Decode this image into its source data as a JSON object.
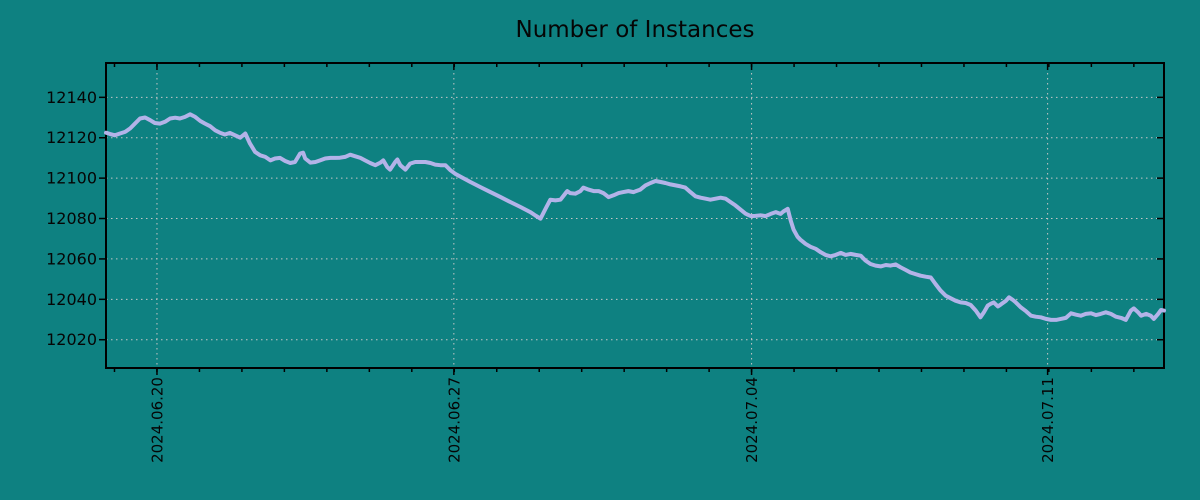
{
  "colors": {
    "background": "#0e8181",
    "line": "#b3b3e8",
    "grid": "#c6c6c6",
    "axis": "#000000",
    "text": "#050505"
  },
  "chart_data": {
    "type": "line",
    "title": "Number of Instances",
    "grid": "dotted",
    "legend": null,
    "x_axis": {
      "tick_labels": [
        "2024.06.20",
        "2024.06.27",
        "2024.07.04",
        "2024.07.11"
      ],
      "tick_days": [
        1.2,
        8.19,
        15.2,
        22.17
      ],
      "minor_tick_interval_days": 1,
      "xlim_days": [
        0,
        24.91
      ],
      "note": "t is in days from the left edge of the plot; the 2024.06.20 tick sits at t=1.20"
    },
    "y_axis": {
      "ticks": [
        12020,
        12040,
        12060,
        12080,
        12100,
        12120,
        12140
      ],
      "ylim": [
        12006,
        12157
      ]
    },
    "series": [
      {
        "name": "instances",
        "points": [
          [
            0.0,
            12122.5
          ],
          [
            0.09,
            12121.9
          ],
          [
            0.21,
            12121.2
          ],
          [
            0.33,
            12122.1
          ],
          [
            0.45,
            12122.9
          ],
          [
            0.57,
            12124.6
          ],
          [
            0.68,
            12127.0
          ],
          [
            0.8,
            12129.5
          ],
          [
            0.92,
            12130.0
          ],
          [
            1.04,
            12128.7
          ],
          [
            1.15,
            12127.3
          ],
          [
            1.27,
            12127.0
          ],
          [
            1.39,
            12127.9
          ],
          [
            1.51,
            12129.5
          ],
          [
            1.63,
            12129.9
          ],
          [
            1.74,
            12129.5
          ],
          [
            1.86,
            12130.3
          ],
          [
            1.98,
            12131.6
          ],
          [
            2.1,
            12130.3
          ],
          [
            2.22,
            12128.3
          ],
          [
            2.33,
            12127.0
          ],
          [
            2.45,
            12125.7
          ],
          [
            2.57,
            12123.7
          ],
          [
            2.69,
            12122.4
          ],
          [
            2.8,
            12121.6
          ],
          [
            2.92,
            12122.4
          ],
          [
            3.04,
            12121.2
          ],
          [
            3.16,
            12120.0
          ],
          [
            3.28,
            12122.1
          ],
          [
            3.39,
            12117.1
          ],
          [
            3.51,
            12113.0
          ],
          [
            3.63,
            12111.3
          ],
          [
            3.75,
            12110.5
          ],
          [
            3.87,
            12108.8
          ],
          [
            3.98,
            12109.7
          ],
          [
            4.1,
            12110.0
          ],
          [
            4.22,
            12108.5
          ],
          [
            4.34,
            12107.5
          ],
          [
            4.45,
            12108.0
          ],
          [
            4.57,
            12112.2
          ],
          [
            4.64,
            12112.6
          ],
          [
            4.69,
            12109.7
          ],
          [
            4.81,
            12107.7
          ],
          [
            4.93,
            12108.0
          ],
          [
            5.04,
            12108.8
          ],
          [
            5.16,
            12109.7
          ],
          [
            5.28,
            12110.0
          ],
          [
            5.4,
            12110.0
          ],
          [
            5.51,
            12110.1
          ],
          [
            5.63,
            12110.5
          ],
          [
            5.75,
            12111.6
          ],
          [
            5.87,
            12110.8
          ],
          [
            5.99,
            12110.0
          ],
          [
            6.1,
            12108.8
          ],
          [
            6.22,
            12107.5
          ],
          [
            6.34,
            12106.4
          ],
          [
            6.46,
            12107.7
          ],
          [
            6.53,
            12108.8
          ],
          [
            6.62,
            12105.5
          ],
          [
            6.69,
            12104.2
          ],
          [
            6.81,
            12108.0
          ],
          [
            6.86,
            12109.2
          ],
          [
            6.93,
            12106.4
          ],
          [
            7.05,
            12104.2
          ],
          [
            7.16,
            12107.2
          ],
          [
            7.28,
            12108.0
          ],
          [
            7.4,
            12108.0
          ],
          [
            7.52,
            12108.0
          ],
          [
            7.64,
            12107.5
          ],
          [
            7.75,
            12106.7
          ],
          [
            7.87,
            12106.4
          ],
          [
            7.99,
            12106.4
          ],
          [
            8.11,
            12103.9
          ],
          [
            8.22,
            12102.2
          ],
          [
            8.34,
            12100.8
          ],
          [
            8.58,
            12098.1
          ],
          [
            8.81,
            12095.6
          ],
          [
            9.05,
            12093.1
          ],
          [
            9.29,
            12090.6
          ],
          [
            9.52,
            12088.2
          ],
          [
            9.76,
            12085.7
          ],
          [
            9.99,
            12083.2
          ],
          [
            10.11,
            12081.5
          ],
          [
            10.23,
            12079.9
          ],
          [
            10.35,
            12084.9
          ],
          [
            10.46,
            12089.3
          ],
          [
            10.58,
            12089.0
          ],
          [
            10.7,
            12089.3
          ],
          [
            10.82,
            12092.6
          ],
          [
            10.86,
            12093.6
          ],
          [
            10.93,
            12092.6
          ],
          [
            11.05,
            12092.3
          ],
          [
            11.17,
            12093.6
          ],
          [
            11.24,
            12095.3
          ],
          [
            11.36,
            12094.3
          ],
          [
            11.48,
            12093.6
          ],
          [
            11.6,
            12093.6
          ],
          [
            11.71,
            12092.6
          ],
          [
            11.83,
            12090.6
          ],
          [
            11.95,
            12091.5
          ],
          [
            12.07,
            12092.6
          ],
          [
            12.18,
            12093.1
          ],
          [
            12.3,
            12093.6
          ],
          [
            12.42,
            12093.1
          ],
          [
            12.58,
            12094.3
          ],
          [
            12.7,
            12096.4
          ],
          [
            12.82,
            12097.6
          ],
          [
            12.94,
            12098.6
          ],
          [
            13.06,
            12098.1
          ],
          [
            13.17,
            12097.6
          ],
          [
            13.29,
            12096.9
          ],
          [
            13.41,
            12096.4
          ],
          [
            13.53,
            12095.9
          ],
          [
            13.64,
            12095.3
          ],
          [
            13.76,
            12093.1
          ],
          [
            13.88,
            12091.0
          ],
          [
            14.0,
            12090.3
          ],
          [
            14.12,
            12089.8
          ],
          [
            14.23,
            12089.3
          ],
          [
            14.35,
            12089.8
          ],
          [
            14.47,
            12090.3
          ],
          [
            14.59,
            12089.8
          ],
          [
            14.7,
            12088.2
          ],
          [
            14.82,
            12086.5
          ],
          [
            14.94,
            12084.4
          ],
          [
            15.06,
            12082.4
          ],
          [
            15.18,
            12081.2
          ],
          [
            15.29,
            12081.3
          ],
          [
            15.41,
            12081.6
          ],
          [
            15.53,
            12081.2
          ],
          [
            15.65,
            12082.3
          ],
          [
            15.77,
            12083.2
          ],
          [
            15.88,
            12082.3
          ],
          [
            15.95,
            12083.5
          ],
          [
            16.05,
            12084.8
          ],
          [
            16.12,
            12079.0
          ],
          [
            16.19,
            12074.5
          ],
          [
            16.28,
            12071.0
          ],
          [
            16.35,
            12069.5
          ],
          [
            16.47,
            12067.5
          ],
          [
            16.59,
            12066.0
          ],
          [
            16.71,
            12065.0
          ],
          [
            16.83,
            12063.3
          ],
          [
            16.94,
            12062.0
          ],
          [
            17.06,
            12061.3
          ],
          [
            17.18,
            12062.0
          ],
          [
            17.3,
            12063.0
          ],
          [
            17.41,
            12062.0
          ],
          [
            17.53,
            12062.5
          ],
          [
            17.65,
            12062.0
          ],
          [
            17.77,
            12061.6
          ],
          [
            17.88,
            12059.2
          ],
          [
            18.0,
            12057.5
          ],
          [
            18.12,
            12056.7
          ],
          [
            18.24,
            12056.3
          ],
          [
            18.36,
            12057.0
          ],
          [
            18.47,
            12056.7
          ],
          [
            18.59,
            12057.3
          ],
          [
            18.71,
            12055.8
          ],
          [
            18.83,
            12054.5
          ],
          [
            18.94,
            12053.3
          ],
          [
            19.06,
            12052.5
          ],
          [
            19.18,
            12051.7
          ],
          [
            19.3,
            12051.2
          ],
          [
            19.42,
            12050.8
          ],
          [
            19.53,
            12047.6
          ],
          [
            19.65,
            12044.3
          ],
          [
            19.77,
            12041.8
          ],
          [
            19.89,
            12040.5
          ],
          [
            20.0,
            12039.3
          ],
          [
            20.12,
            12038.5
          ],
          [
            20.24,
            12038.2
          ],
          [
            20.36,
            12037.2
          ],
          [
            20.48,
            12034.4
          ],
          [
            20.59,
            12031.1
          ],
          [
            20.67,
            12033.6
          ],
          [
            20.76,
            12036.9
          ],
          [
            20.83,
            12037.8
          ],
          [
            20.9,
            12038.5
          ],
          [
            21.0,
            12036.5
          ],
          [
            21.07,
            12037.5
          ],
          [
            21.19,
            12039.3
          ],
          [
            21.26,
            12041.0
          ],
          [
            21.35,
            12039.7
          ],
          [
            21.42,
            12038.5
          ],
          [
            21.54,
            12036.0
          ],
          [
            21.66,
            12034.1
          ],
          [
            21.78,
            12031.9
          ],
          [
            21.89,
            12031.4
          ],
          [
            22.01,
            12031.1
          ],
          [
            22.13,
            12030.3
          ],
          [
            22.25,
            12029.8
          ],
          [
            22.37,
            12029.8
          ],
          [
            22.48,
            12030.3
          ],
          [
            22.6,
            12030.8
          ],
          [
            22.72,
            12033.1
          ],
          [
            22.84,
            12032.4
          ],
          [
            22.95,
            12031.9
          ],
          [
            23.07,
            12032.8
          ],
          [
            23.19,
            12033.1
          ],
          [
            23.31,
            12032.2
          ],
          [
            23.42,
            12032.8
          ],
          [
            23.54,
            12033.6
          ],
          [
            23.66,
            12032.8
          ],
          [
            23.78,
            12031.4
          ],
          [
            23.9,
            12030.8
          ],
          [
            24.01,
            12029.8
          ],
          [
            24.13,
            12034.4
          ],
          [
            24.2,
            12035.5
          ],
          [
            24.3,
            12033.6
          ],
          [
            24.37,
            12031.9
          ],
          [
            24.49,
            12032.8
          ],
          [
            24.6,
            12031.9
          ],
          [
            24.67,
            12030.3
          ],
          [
            24.77,
            12032.8
          ],
          [
            24.84,
            12034.7
          ],
          [
            24.91,
            12034.4
          ]
        ]
      }
    ]
  }
}
